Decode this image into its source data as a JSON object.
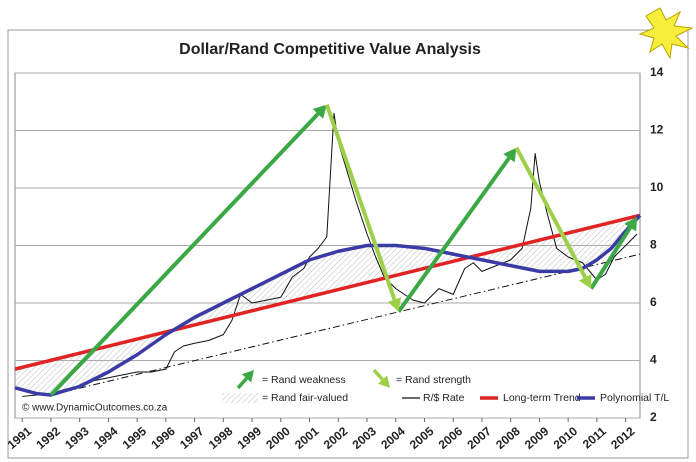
{
  "chart_data": {
    "type": "line",
    "title": "Dollar/Rand Competitive Value Analysis",
    "credit": "© www.DynamicOutcomes.co.za",
    "xlim": [
      1990.75,
      2012.5
    ],
    "xticks": [
      1991,
      1992,
      1993,
      1994,
      1995,
      1996,
      1997,
      1998,
      1999,
      2000,
      2001,
      2002,
      2003,
      2004,
      2005,
      2006,
      2007,
      2008,
      2009,
      2010,
      2011,
      2012
    ],
    "ylim": [
      2,
      14
    ],
    "yticks": [
      2,
      4,
      6,
      8,
      10,
      12,
      14
    ],
    "grid": true,
    "series": [
      {
        "name": "R/$ Rate",
        "color": "#111111",
        "x": [
          1991,
          1991.5,
          1992,
          1992.5,
          1993,
          1993.5,
          1994,
          1994.5,
          1995,
          1995.5,
          1996,
          1996.3,
          1996.6,
          1997,
          1997.5,
          1998,
          1998.3,
          1998.6,
          1999,
          1999.5,
          2000,
          2000.4,
          2000.8,
          2001,
          2001.3,
          2001.6,
          2001.85,
          2002,
          2002.3,
          2002.6,
          2003,
          2003.3,
          2003.6,
          2004,
          2004.3,
          2004.6,
          2005,
          2005.5,
          2006,
          2006.4,
          2006.7,
          2007,
          2007.5,
          2008,
          2008.4,
          2008.7,
          2008.85,
          2009,
          2009.3,
          2009.6,
          2010,
          2010.5,
          2011,
          2011.3,
          2011.6,
          2012,
          2012.4
        ],
        "values": [
          2.75,
          2.8,
          2.85,
          3.0,
          3.1,
          3.3,
          3.4,
          3.5,
          3.6,
          3.6,
          3.7,
          4.3,
          4.5,
          4.6,
          4.7,
          4.9,
          5.4,
          6.3,
          6.0,
          6.1,
          6.2,
          6.9,
          7.2,
          7.6,
          7.9,
          8.3,
          12.6,
          11.6,
          10.6,
          9.6,
          8.4,
          7.6,
          6.9,
          6.5,
          6.3,
          6.1,
          6.0,
          6.5,
          6.3,
          7.2,
          7.4,
          7.1,
          7.3,
          7.5,
          7.9,
          9.3,
          11.2,
          10.2,
          9.0,
          7.9,
          7.6,
          7.4,
          6.8,
          7.0,
          7.6,
          8.0,
          8.4
        ]
      },
      {
        "name": "Long-term Trend",
        "color": "#e02424",
        "x": [
          1990.75,
          2012.5
        ],
        "values": [
          3.7,
          9.05
        ]
      },
      {
        "name": "Polynomial T/L",
        "color": "#3b3ba6",
        "x": [
          1990.75,
          1991.5,
          1992,
          1993,
          1994,
          1995,
          1996,
          1997,
          1998,
          1999,
          2000,
          2001,
          2002,
          2003,
          2004,
          2005,
          2006,
          2007,
          2008,
          2009,
          2010,
          2010.5,
          2011,
          2011.5,
          2012,
          2012.5
        ],
        "values": [
          3.05,
          2.85,
          2.8,
          3.1,
          3.6,
          4.2,
          4.9,
          5.5,
          6.0,
          6.5,
          7.0,
          7.5,
          7.8,
          8.0,
          8.0,
          7.9,
          7.7,
          7.5,
          7.3,
          7.1,
          7.1,
          7.2,
          7.5,
          7.9,
          8.5,
          9.05
        ]
      },
      {
        "color": "#111111",
        "dash": true,
        "x": [
          1992,
          2012.5
        ],
        "values": [
          2.8,
          7.7
        ]
      }
    ],
    "weakness_arrows": {
      "label": "= Rand weakness",
      "color": "#3aa845",
      "segments": [
        {
          "x": [
            1992,
            2001.6
          ],
          "y": [
            2.8,
            12.9
          ]
        },
        {
          "x": [
            2004.1,
            2008.2
          ],
          "y": [
            5.7,
            11.4
          ]
        },
        {
          "x": [
            2010.8,
            2012.4
          ],
          "y": [
            6.5,
            9.0
          ]
        }
      ]
    },
    "strength_arrows": {
      "label": "= Rand strength",
      "color": "#9dd048",
      "segments": [
        {
          "x": [
            2001.6,
            2004.1
          ],
          "y": [
            12.9,
            5.7
          ]
        },
        {
          "x": [
            2008.2,
            2010.8
          ],
          "y": [
            11.4,
            6.5
          ]
        }
      ]
    },
    "fair_value": {
      "label": "= Rand fair-valued"
    }
  }
}
